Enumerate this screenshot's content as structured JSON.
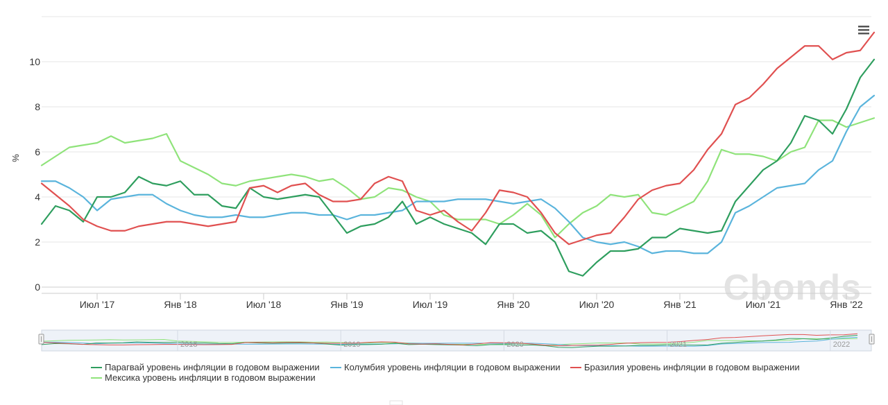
{
  "chart_data": {
    "type": "line",
    "title": "",
    "ylabel": "%",
    "xlabel": "",
    "ylim": [
      0,
      12
    ],
    "yticks": [
      0,
      2,
      4,
      6,
      8,
      10
    ],
    "x_start": "2017-03",
    "x_end": "2022-04",
    "x_ticks": [
      {
        "month_index": 4,
        "label": "Июл '17"
      },
      {
        "month_index": 10,
        "label": "Янв '18"
      },
      {
        "month_index": 16,
        "label": "Июл '18"
      },
      {
        "month_index": 22,
        "label": "Янв '19"
      },
      {
        "month_index": 28,
        "label": "Июл '19"
      },
      {
        "month_index": 34,
        "label": "Янв '20"
      },
      {
        "month_index": 40,
        "label": "Июл '20"
      },
      {
        "month_index": 46,
        "label": "Янв '21"
      },
      {
        "month_index": 52,
        "label": "Июл '21"
      },
      {
        "month_index": 58,
        "label": "Янв '22"
      }
    ],
    "navigator_labels": [
      "2018",
      "2019",
      "2020",
      "2021",
      "2022"
    ],
    "series": [
      {
        "name": "Парагвай уровень инфляции в годовом выражении",
        "color": "#2e9e5e",
        "values": [
          2.8,
          3.6,
          3.4,
          2.9,
          4.0,
          4.0,
          4.2,
          4.9,
          4.6,
          4.5,
          4.7,
          4.1,
          4.1,
          3.6,
          3.5,
          4.4,
          4.0,
          3.9,
          4.0,
          4.1,
          4.0,
          3.2,
          2.4,
          2.7,
          2.8,
          3.1,
          3.8,
          2.8,
          3.1,
          2.8,
          2.6,
          2.4,
          1.9,
          2.8,
          2.8,
          2.4,
          2.5,
          2.0,
          0.7,
          0.5,
          1.1,
          1.6,
          1.6,
          1.7,
          2.2,
          2.2,
          2.6,
          2.5,
          2.4,
          2.5,
          3.8,
          4.5,
          5.2,
          5.6,
          6.4,
          7.6,
          7.4,
          6.8,
          7.9,
          9.3,
          10.1
        ]
      },
      {
        "name": "Колумбия уровень инфляции в годовом выражении",
        "color": "#5ab4dc",
        "values": [
          4.7,
          4.7,
          4.4,
          4.0,
          3.4,
          3.9,
          4.0,
          4.1,
          4.1,
          3.7,
          3.4,
          3.2,
          3.1,
          3.1,
          3.2,
          3.1,
          3.1,
          3.2,
          3.3,
          3.3,
          3.2,
          3.2,
          3.0,
          3.2,
          3.2,
          3.3,
          3.4,
          3.8,
          3.8,
          3.8,
          3.9,
          3.9,
          3.9,
          3.8,
          3.7,
          3.8,
          3.9,
          3.5,
          2.9,
          2.2,
          2.0,
          1.9,
          2.0,
          1.8,
          1.5,
          1.6,
          1.6,
          1.5,
          1.5,
          2.0,
          3.3,
          3.6,
          4.0,
          4.4,
          4.5,
          4.6,
          5.2,
          5.6,
          6.9,
          8.0,
          8.5
        ]
      },
      {
        "name": "Бразилия уровень инфляции в годовом выражении",
        "color": "#e05050",
        "values": [
          4.6,
          4.1,
          3.6,
          3.0,
          2.7,
          2.5,
          2.5,
          2.7,
          2.8,
          2.9,
          2.9,
          2.8,
          2.7,
          2.8,
          2.9,
          4.4,
          4.5,
          4.2,
          4.5,
          4.6,
          4.1,
          3.8,
          3.8,
          3.9,
          4.6,
          4.9,
          4.7,
          3.4,
          3.2,
          3.4,
          2.9,
          2.5,
          3.3,
          4.3,
          4.2,
          4.0,
          3.3,
          2.4,
          1.9,
          2.1,
          2.3,
          2.4,
          3.1,
          3.9,
          4.3,
          4.5,
          4.6,
          5.2,
          6.1,
          6.8,
          8.1,
          8.4,
          9.0,
          9.7,
          10.2,
          10.7,
          10.7,
          10.1,
          10.4,
          10.5,
          11.3
        ]
      },
      {
        "name": "Мексика уровень инфляции в годовом выражении",
        "color": "#8fe37a",
        "values": [
          5.4,
          5.8,
          6.2,
          6.3,
          6.4,
          6.7,
          6.4,
          6.5,
          6.6,
          6.8,
          5.6,
          5.3,
          5.0,
          4.6,
          4.5,
          4.7,
          4.8,
          4.9,
          5.0,
          4.9,
          4.7,
          4.8,
          4.4,
          3.9,
          4.0,
          4.4,
          4.3,
          4.0,
          3.8,
          3.2,
          3.0,
          3.0,
          3.0,
          2.8,
          3.2,
          3.7,
          3.2,
          2.2,
          2.8,
          3.3,
          3.6,
          4.1,
          4.0,
          4.1,
          3.3,
          3.2,
          3.5,
          3.8,
          4.7,
          6.1,
          5.9,
          5.9,
          5.8,
          5.6,
          6.0,
          6.2,
          7.4,
          7.4,
          7.1,
          7.3,
          7.5
        ]
      }
    ]
  },
  "watermark": "Cbonds",
  "menu_icon": "hamburger-menu-icon",
  "colors": {
    "grid": "#e6e6e6",
    "axis": "#cccccc",
    "navigator_fill": "#eef2f8",
    "navigator_mask": "#d8e2f0"
  }
}
